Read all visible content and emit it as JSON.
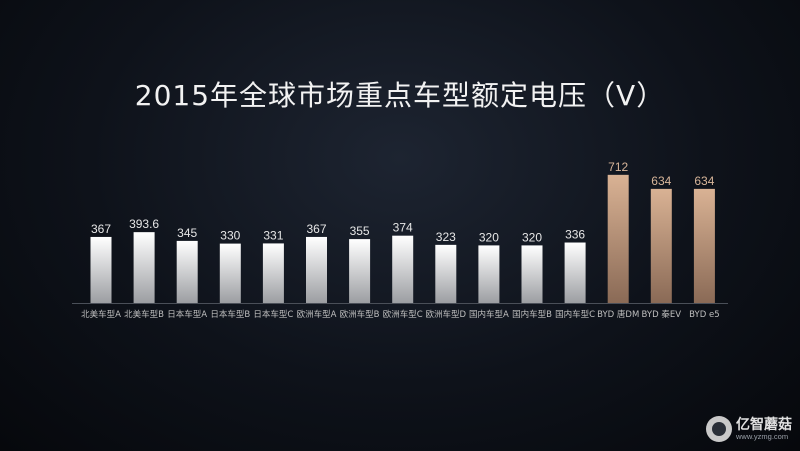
{
  "chart_data": {
    "type": "bar",
    "title": "2015年全球市场重点车型额定电压（V）",
    "categories": [
      "北美车型A",
      "北美车型B",
      "日本车型A",
      "日本车型B",
      "日本车型C",
      "欧洲车型A",
      "欧洲车型B",
      "欧洲车型C",
      "欧洲车型D",
      "国内车型A",
      "国内车型B",
      "国内车型C",
      "BYD 唐DM",
      "BYD 秦EV",
      "BYD e5"
    ],
    "values": [
      367,
      393.6,
      345,
      330,
      331,
      367,
      355,
      374,
      323,
      320,
      320,
      336,
      712,
      634,
      634
    ],
    "value_labels": [
      "367",
      "393.6",
      "345",
      "330",
      "331",
      "367",
      "355",
      "374",
      "323",
      "320",
      "320",
      "336",
      "712",
      "634",
      "634"
    ],
    "highlight_categories": [
      "BYD 唐DM",
      "BYD 秦EV",
      "BYD e5"
    ],
    "colors": {
      "standard": "#e8e8e8",
      "highlight": "#d9b294"
    },
    "ylim": [
      0,
      800
    ],
    "grid": false,
    "legend": "none"
  },
  "watermark": {
    "name": "亿智蘑菇",
    "url": "www.yzmg.com",
    "icon": "mushroom-logo-icon"
  }
}
